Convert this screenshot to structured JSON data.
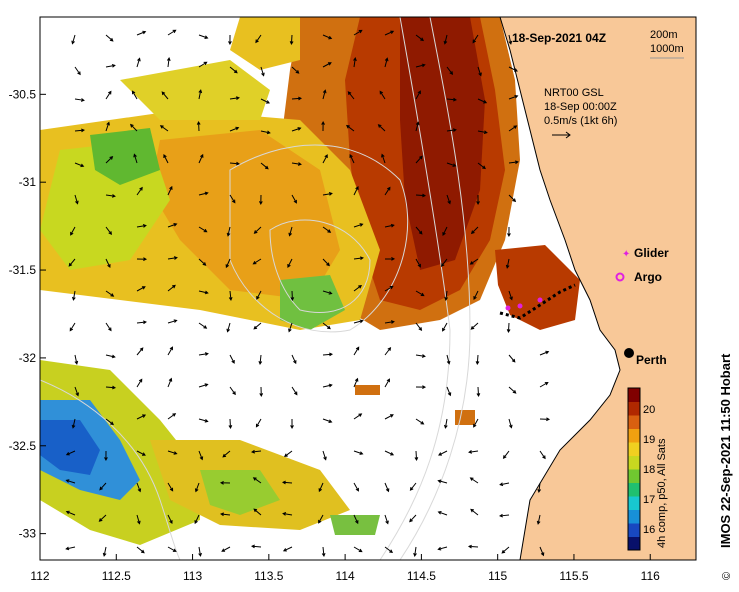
{
  "map": {
    "title": "18-Sep-2021 04Z",
    "depth_legend": [
      "200m",
      "1000m"
    ],
    "current_info": [
      "NRT00 GSL",
      "18-Sep 00:00Z",
      "0.5m/s (1kt 6h)"
    ],
    "legend": [
      {
        "label": "Glider",
        "color": "#e020e0"
      },
      {
        "label": "Argo",
        "color": "#e020e0"
      }
    ],
    "city": "Perth",
    "credit": "IMOS 22-Sep-2021 11:50 Hobart",
    "copyright_symbol": "©",
    "colorbar": {
      "caption": "4h comp, p50, All Sats",
      "ticks": [
        "16",
        "17",
        "18",
        "19",
        "20"
      ],
      "range": [
        15.3,
        20.7
      ]
    },
    "x_ticks": [
      "112",
      "112.5",
      "113",
      "113.5",
      "114",
      "114.5",
      "115",
      "115.5",
      "116"
    ],
    "y_ticks": [
      "-30.5",
      "-31",
      "-31.5",
      "-32",
      "-32.5",
      "-33"
    ],
    "lon_range": [
      112,
      116.3
    ],
    "lat_range": [
      -33.15,
      -30.06
    ],
    "colors": {
      "land": "#f8c898",
      "warm": "#a01f00",
      "cool": "#1860c8",
      "coast": "#000000"
    }
  }
}
